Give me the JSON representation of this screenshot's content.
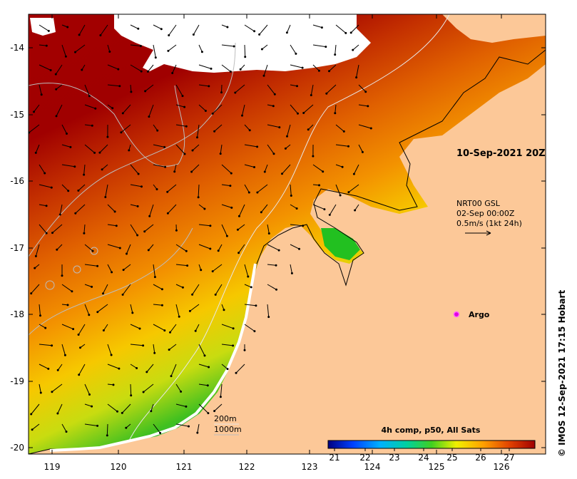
{
  "map": {
    "y_ticks": [
      "-14",
      "-15",
      "-16",
      "-17",
      "-18",
      "-19",
      "-20"
    ],
    "x_ticks": [
      "119",
      "120",
      "121",
      "122",
      "123",
      "124",
      "125",
      "126"
    ],
    "timestamp": "10-Sep-2021 20Z",
    "current_legend": {
      "line1": "NRT00 GSL",
      "line2": "02-Sep 00:00Z",
      "line3": "0.5m/s (1kt 24h)"
    },
    "argo_label": "Argo",
    "isobath_200": "200m",
    "isobath_1000": "1000m",
    "colorbar_title": "4h comp, p50, All Sats",
    "colorbar_ticks": [
      "21",
      "22",
      "23",
      "24",
      "25",
      "26",
      "27"
    ],
    "credit": "© IMOS 12-Sep-2021 17:15 Hobart",
    "colors": {
      "land": "#fcc898",
      "sst_hot": "#a00000",
      "sst_cool": "#1e9be0",
      "nodata": "#ffffff"
    }
  }
}
